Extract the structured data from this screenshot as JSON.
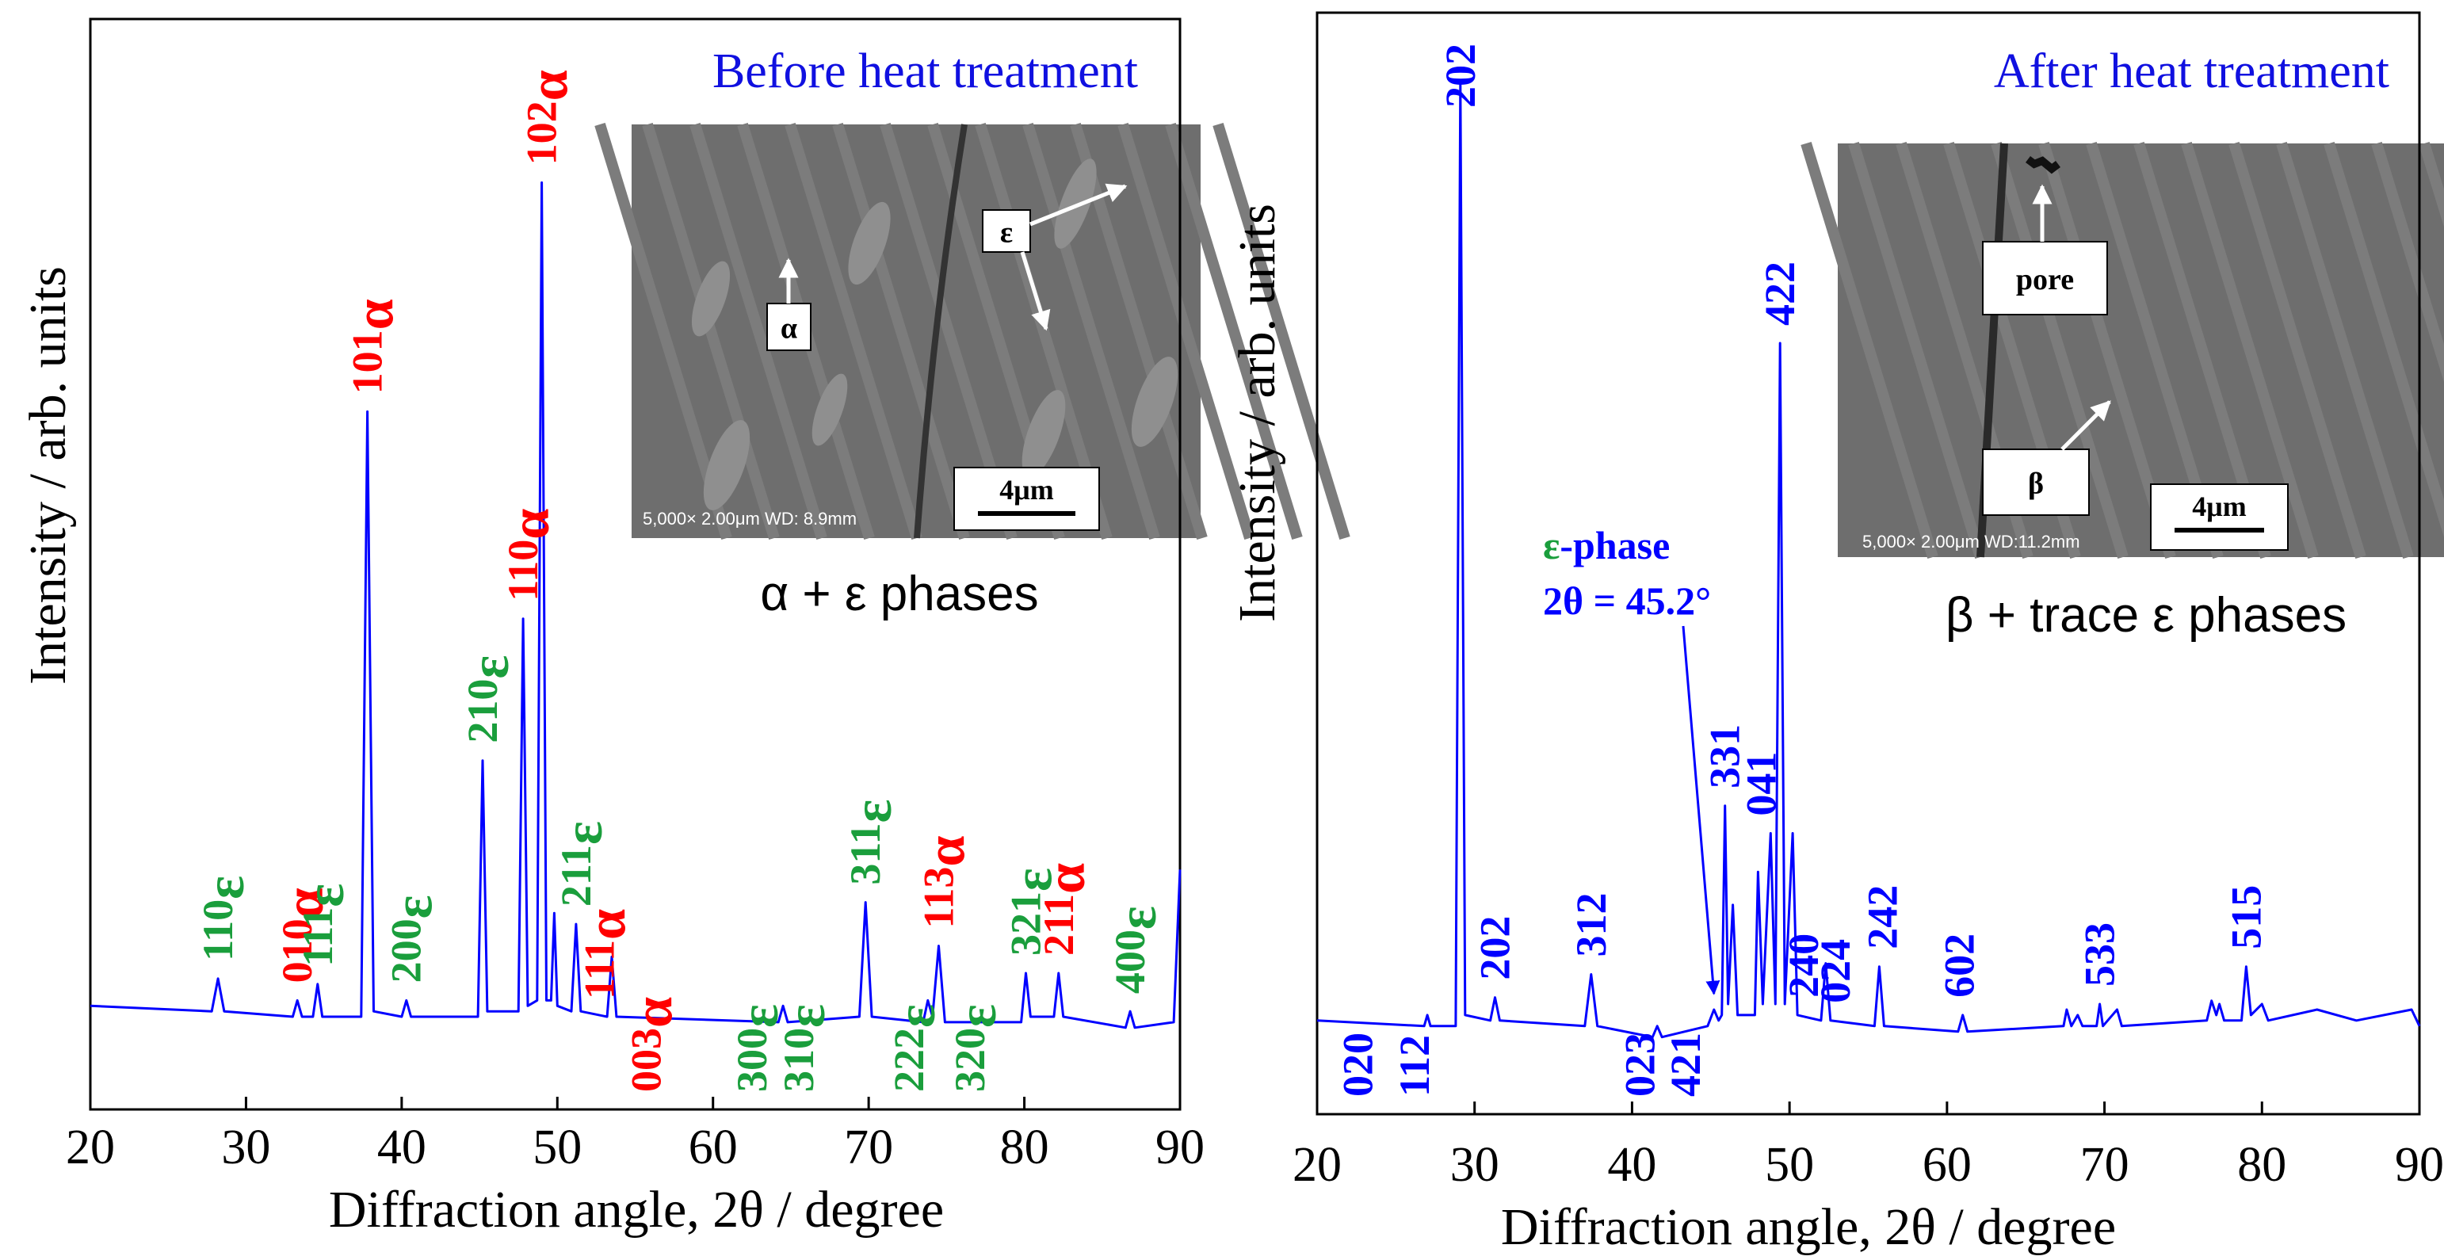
{
  "chart_data": [
    {
      "type": "line",
      "title": "Before heat treatment",
      "xlabel": "Diffraction angle, 2θ / degree",
      "ylabel": "Intensity / arb. units",
      "xlim": [
        20,
        90
      ],
      "xticks": [
        20,
        30,
        40,
        50,
        60,
        70,
        80,
        90
      ],
      "ylim": [
        0,
        100
      ],
      "title_color": "#1010e0",
      "series": [
        {
          "color": "#0000ff",
          "x": [
            20,
            27.8,
            28.2,
            28.6,
            33,
            33.3,
            33.6,
            34.3,
            34.6,
            34.9,
            37.4,
            37.8,
            38.2,
            40,
            40.3,
            40.6,
            44.9,
            45.2,
            45.5,
            47.5,
            47.8,
            48.1,
            48.7,
            49.0,
            49.3,
            49.6,
            49.8,
            50.0,
            50.9,
            51.2,
            51.5,
            53.2,
            53.5,
            53.8,
            64.2,
            64.5,
            64.8,
            69.4,
            69.8,
            70.2,
            73.5,
            73.8,
            74.1,
            74.5,
            74.9,
            79.8,
            80.1,
            80.4,
            81.9,
            82.2,
            82.5,
            86.5,
            86.8,
            87.1,
            89.6,
            90
          ],
          "values": [
            9.5,
            9,
            12,
            9,
            8.5,
            10,
            8.5,
            8.5,
            11.5,
            8.5,
            8.5,
            64,
            9,
            8.5,
            10,
            8.5,
            8.5,
            32,
            9,
            9,
            45,
            9.5,
            10,
            85,
            10,
            10,
            18,
            9.5,
            9,
            17,
            9,
            8.5,
            14,
            8.5,
            8,
            9.5,
            8,
            8.5,
            19,
            8.5,
            8,
            10,
            8.5,
            15,
            8,
            8,
            12.5,
            8.5,
            8.5,
            12.5,
            8.5,
            7.5,
            9,
            7.5,
            8,
            22
          ]
        }
      ],
      "peak_labels": [
        {
          "label": "110",
          "phase": "ε",
          "x": 28.2,
          "color": "#1a9e3c"
        },
        {
          "label": "010",
          "phase": "α",
          "x": 33.3,
          "color": "#ff0000"
        },
        {
          "label": "111",
          "phase": "ε",
          "x": 34.6,
          "color": "#1a9e3c"
        },
        {
          "label": "101",
          "phase": "α",
          "x": 37.8,
          "color": "#ff0000"
        },
        {
          "label": "200",
          "phase": "ε",
          "x": 40.3,
          "color": "#1a9e3c"
        },
        {
          "label": "210",
          "phase": "ε",
          "x": 45.2,
          "color": "#1a9e3c"
        },
        {
          "label": "110",
          "phase": "α",
          "x": 47.8,
          "color": "#ff0000"
        },
        {
          "label": "102",
          "phase": "α",
          "x": 49.0,
          "color": "#ff0000"
        },
        {
          "label": "211",
          "phase": "ε",
          "x": 51.2,
          "color": "#1a9e3c"
        },
        {
          "label": "111",
          "phase": "α",
          "x": 52.7,
          "color": "#ff0000"
        },
        {
          "label": "003",
          "phase": "α",
          "x": 55.7,
          "color": "#ff0000"
        },
        {
          "label": "300",
          "phase": "ε",
          "x": 62.5,
          "color": "#1a9e3c"
        },
        {
          "label": "310",
          "phase": "ε",
          "x": 65.5,
          "color": "#1a9e3c"
        },
        {
          "label": "311",
          "phase": "ε",
          "x": 69.8,
          "color": "#1a9e3c"
        },
        {
          "label": "222",
          "phase": "ε",
          "x": 72.6,
          "color": "#1a9e3c"
        },
        {
          "label": "113",
          "phase": "α",
          "x": 74.5,
          "color": "#ff0000"
        },
        {
          "label": "320",
          "phase": "ε",
          "x": 76.5,
          "color": "#1a9e3c"
        },
        {
          "label": "321",
          "phase": "ε",
          "x": 80.1,
          "color": "#1a9e3c"
        },
        {
          "label": "211",
          "phase": "α",
          "x": 82.2,
          "color": "#ff0000"
        },
        {
          "label": "400",
          "phase": "ε",
          "x": 86.8,
          "color": "#1a9e3c"
        }
      ],
      "phase_note": "α + ε phases",
      "inset": {
        "labels": [
          "ε",
          "α"
        ],
        "scale_bar": "4μm",
        "info": "5,000× 2.00μm WD: 8.9mm"
      }
    },
    {
      "type": "line",
      "title": "After heat treatment",
      "xlabel": "Diffraction angle, 2θ / degree",
      "ylabel": "Intensity / arb. units",
      "xlim": [
        20,
        90
      ],
      "xticks": [
        20,
        30,
        40,
        50,
        60,
        70,
        80,
        90
      ],
      "ylim": [
        0,
        100
      ],
      "title_color": "#1010e0",
      "series": [
        {
          "color": "#0000ff",
          "x": [
            20,
            26.8,
            27,
            27.2,
            28.8,
            29.1,
            29.4,
            31.0,
            31.3,
            31.6,
            37.0,
            37.4,
            37.8,
            41.3,
            41.6,
            41.9,
            44.8,
            45.2,
            45.5,
            45.7,
            45.9,
            46.1,
            46.4,
            46.7,
            47.8,
            48.0,
            48.3,
            48.8,
            49.1,
            49.4,
            49.7,
            50.2,
            50.5,
            52.0,
            52.3,
            52.6,
            55.4,
            55.7,
            56,
            60.7,
            61,
            61.3,
            67.4,
            67.6,
            67.9,
            68.3,
            68.6,
            69.5,
            69.7,
            69.9,
            70.8,
            71.1,
            76.5,
            76.8,
            77.1,
            77.3,
            77.6,
            78.7,
            79.0,
            79.3,
            80,
            80.4,
            83.5,
            86,
            89.5,
            90
          ],
          "values": [
            8.5,
            8,
            9,
            8,
            8,
            93.6,
            9,
            8.5,
            10.6,
            8.5,
            8,
            12.7,
            8,
            7,
            8,
            7,
            8,
            9.5,
            8.5,
            9,
            28,
            10,
            19,
            9,
            9,
            22,
            10,
            25.5,
            10,
            70,
            10,
            25.5,
            9,
            8.5,
            13.7,
            8.5,
            8,
            13.4,
            8,
            7.5,
            9,
            7.5,
            8,
            9.5,
            8,
            9,
            8,
            8,
            10,
            8,
            9.5,
            8,
            8.5,
            10.3,
            9,
            10,
            8.5,
            8.5,
            13.4,
            9,
            10,
            8.5,
            9.5,
            8.5,
            9.5,
            8
          ]
        }
      ],
      "peak_labels": [
        {
          "label": "020",
          "x": 22.6,
          "color": "#0000ff"
        },
        {
          "label": "112",
          "x": 26.2,
          "color": "#0000ff"
        },
        {
          "label": "202",
          "x": 29.1,
          "color": "#0000ff"
        },
        {
          "label": "202",
          "x": 31.3,
          "color": "#0000ff"
        },
        {
          "label": "312",
          "x": 37.4,
          "color": "#0000ff"
        },
        {
          "label": "023",
          "x": 40.5,
          "color": "#0000ff"
        },
        {
          "label": "421",
          "x": 43.4,
          "color": "#0000ff"
        },
        {
          "label": "331",
          "x": 45.9,
          "color": "#0000ff"
        },
        {
          "label": "041",
          "x": 48.2,
          "color": "#0000ff"
        },
        {
          "label": "422",
          "x": 49.4,
          "color": "#0000ff"
        },
        {
          "label": "240",
          "x": 50.9,
          "color": "#0000ff"
        },
        {
          "label": "024",
          "x": 52.9,
          "color": "#0000ff"
        },
        {
          "label": "242",
          "x": 55.9,
          "color": "#0000ff"
        },
        {
          "label": "602",
          "x": 60.8,
          "color": "#0000ff"
        },
        {
          "label": "533",
          "x": 69.7,
          "color": "#0000ff"
        },
        {
          "label": "515",
          "x": 79.0,
          "color": "#0000ff"
        }
      ],
      "phase_note": "β + trace ε phases",
      "annotation": {
        "symbol": "ε",
        "text": "-phase",
        "detail": "2θ = 45.2°",
        "x": 45.2,
        "symbol_color": "#1a9e3c",
        "color": "#0000ff"
      },
      "inset": {
        "labels": [
          "pore",
          "β"
        ],
        "scale_bar": "4μm",
        "info": "5,000× 2.00μm WD:11.2mm"
      }
    }
  ]
}
